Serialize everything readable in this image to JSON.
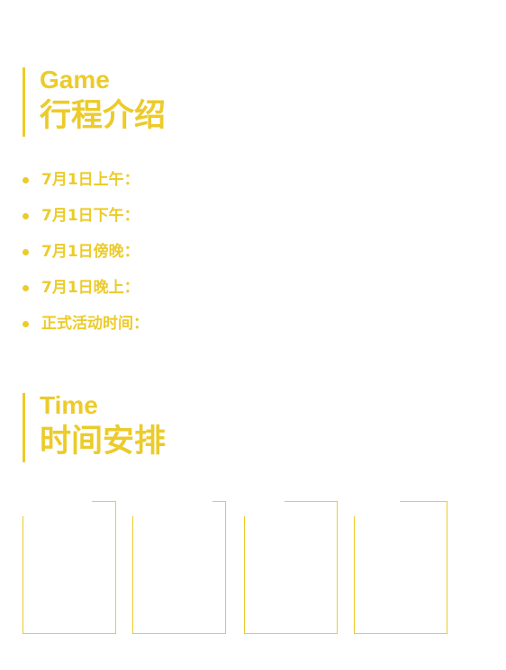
{
  "colors": {
    "accent": "#eccb2a",
    "background": "#ffffff"
  },
  "game_section": {
    "title_en": "Game",
    "title_zh": "行程介绍",
    "items": [
      {
        "label": "7月1日上午："
      },
      {
        "label": "7月1日下午："
      },
      {
        "label": "7月1日傍晚："
      },
      {
        "label": "7月1日晚上："
      },
      {
        "label": "正式活动时间："
      }
    ]
  },
  "time_section": {
    "title_en": "Time",
    "title_zh": "时间安排",
    "cards": [
      {
        "content": ""
      },
      {
        "content": ""
      },
      {
        "content": ""
      },
      {
        "content": ""
      }
    ]
  }
}
